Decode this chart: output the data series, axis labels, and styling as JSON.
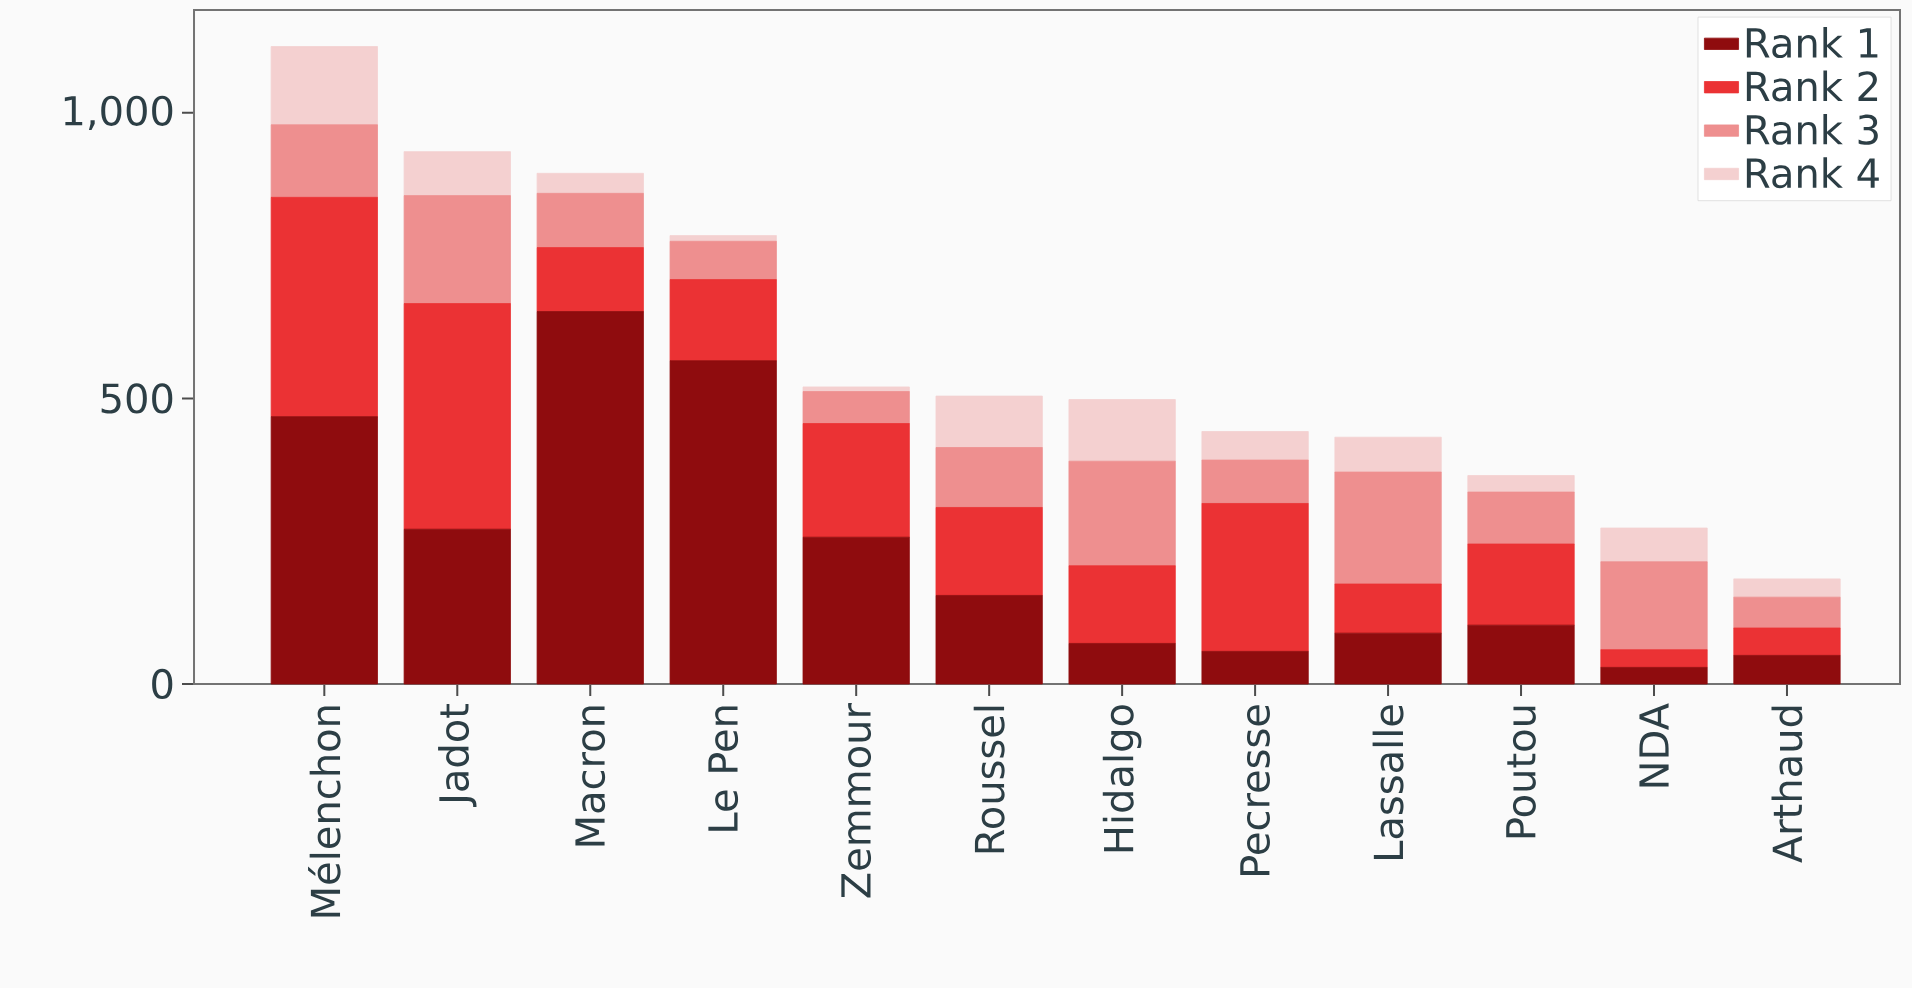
{
  "chart_data": {
    "type": "bar",
    "stacked": true,
    "categories": [
      "Mélenchon",
      "Jadot",
      "Macron",
      "Le Pen",
      "Zemmour",
      "Roussel",
      "Hidalgo",
      "Pecresse",
      "Lassalle",
      "Poutou",
      "NDA",
      "Arthaud"
    ],
    "series": [
      {
        "name": "Rank 1",
        "color": "#8f0c0e",
        "values": [
          468,
          271,
          652,
          566,
          257,
          155,
          71,
          57,
          89,
          103,
          29,
          50
        ]
      },
      {
        "name": "Rank 2",
        "color": "#eb3234",
        "values": [
          384,
          395,
          112,
          142,
          199,
          154,
          136,
          259,
          86,
          142,
          31,
          48
        ]
      },
      {
        "name": "Rank 3",
        "color": "#ee8f8f",
        "values": [
          127,
          189,
          95,
          67,
          56,
          105,
          183,
          76,
          196,
          91,
          154,
          54
        ]
      },
      {
        "name": "Rank 4",
        "color": "#f4d0d0",
        "values": [
          137,
          77,
          35,
          10,
          8,
          90,
          108,
          50,
          61,
          29,
          59,
          32
        ]
      }
    ],
    "ylim": [
      0,
      1180
    ],
    "yticks": [
      0,
      500,
      {
        "value": 1000,
        "label": "1,000"
      }
    ],
    "legend": "top right",
    "grid": false
  }
}
